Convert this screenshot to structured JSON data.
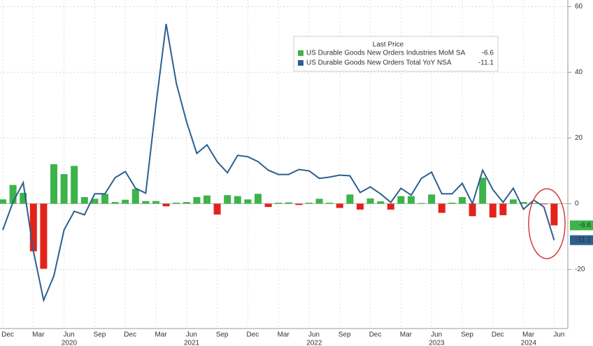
{
  "chart_data": {
    "type": "combo",
    "legend_title": "Last Price",
    "categories": [
      "Dec",
      null,
      null,
      "Mar",
      null,
      null,
      "Jun",
      null,
      null,
      "Sep",
      null,
      null,
      "Dec",
      null,
      null,
      "Mar",
      null,
      null,
      "Jun",
      null,
      null,
      "Sep",
      null,
      null,
      "Dec",
      null,
      null,
      "Mar",
      null,
      null,
      "Jun",
      null,
      null,
      "Sep",
      null,
      null,
      "Dec",
      null,
      null,
      "Mar",
      null,
      null,
      "Jun",
      null,
      null,
      "Sep",
      null,
      null,
      "Dec",
      null,
      null,
      "Mar",
      null,
      null,
      "Jun"
    ],
    "years": [
      "2020",
      "2021",
      "2022",
      "2023",
      "2024"
    ],
    "series": [
      {
        "name": "US Durable Goods New Orders Industries MoM SA",
        "type": "bar",
        "color": "#3cb44a",
        "negative_color": "#e3231b",
        "values": [
          1.3,
          5.7,
          3.3,
          -14.5,
          -19.8,
          12,
          9,
          11.5,
          2,
          1.5,
          3,
          0.5,
          1.2,
          4.5,
          0.8,
          0.8,
          -0.8,
          0.3,
          0.5,
          2,
          2.5,
          -3.3,
          2.6,
          2.3,
          1.3,
          3,
          -1,
          0.3,
          0.4,
          -0.4,
          0.3,
          1.5,
          0.3,
          -1.3,
          2.8,
          -1.8,
          1.6,
          0.7,
          -1.8,
          2.3,
          2.3,
          0.2,
          2.8,
          -2.8,
          0.3,
          2,
          -3.8,
          7.9,
          -4.2,
          -3.5,
          1.3,
          0.5,
          0.2,
          -0.2,
          -6.6
        ]
      },
      {
        "name": "US Durable Goods New Orders Total YoY NSA",
        "type": "line",
        "color": "#2c5f8e",
        "values": [
          -8,
          0.5,
          6.4,
          -14.5,
          -29.4,
          -22,
          -8,
          -2.3,
          -3.4,
          3,
          3,
          7.9,
          9.8,
          4.7,
          3.2,
          30,
          54.7,
          36.6,
          24.9,
          15.3,
          17.9,
          12.8,
          9.4,
          14.7,
          14.3,
          12.8,
          10.2,
          8.9,
          8.9,
          10.4,
          10,
          7.7,
          8.1,
          8.7,
          8.5,
          3.4,
          5.1,
          3,
          0.4,
          4.7,
          2.6,
          7.7,
          9.6,
          3,
          3,
          6.2,
          0,
          10.2,
          4.3,
          0.4,
          4.7,
          -1.7,
          1.1,
          -1,
          -11.1
        ]
      }
    ],
    "ylim": [
      -38,
      62
    ],
    "yticks": [
      60,
      40,
      20,
      0,
      -20
    ],
    "grid": true
  }
}
